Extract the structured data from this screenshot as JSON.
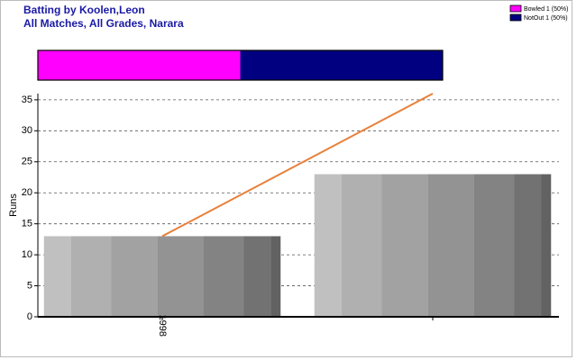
{
  "chart_data": {
    "type": "bar",
    "title": "Batting by Koolen,Leon",
    "subtitle": "All Matches, All Grades, Narara",
    "y_label": "Runs",
    "categories": [
      "1998",
      null
    ],
    "series": [
      {
        "name": "Runs",
        "type": "bar",
        "values": [
          13,
          23
        ]
      },
      {
        "name": "Cumulative",
        "type": "line",
        "color": "#e8803a",
        "values": [
          13,
          36
        ]
      }
    ],
    "breakdown": [
      {
        "label": "Bowled 1 (50%)",
        "value": 50,
        "color": "#ff00ff"
      },
      {
        "label": "NotOut 1 (50%)",
        "value": 50,
        "color": "#000080"
      }
    ],
    "ylim": [
      0,
      36
    ],
    "yticks": [
      0,
      5,
      10,
      15,
      20,
      25,
      30,
      35
    ],
    "grid": true
  }
}
